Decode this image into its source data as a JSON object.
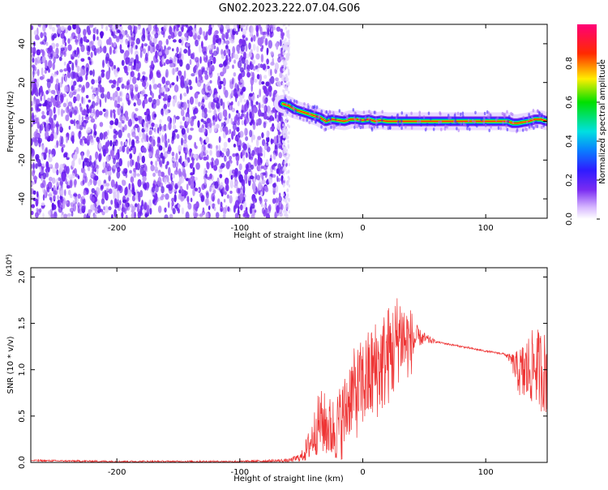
{
  "page": {
    "title": "GN02.2023.222.07.04.G06"
  },
  "colors": {
    "snr_line": "#ee3333",
    "spectrogram_noise": "#7a2cf2",
    "axis": "#000000"
  },
  "colorbar": {
    "label": "Normalized spectral amplitude",
    "ticks": [
      "0.0",
      "0.2",
      "0.4",
      "0.6",
      "0.8"
    ],
    "tick_values": [
      0.0,
      0.2,
      0.4,
      0.6,
      0.8
    ],
    "range": [
      0,
      1
    ],
    "colormap": "white-purple-blue-cyan-green-yellow-red-magenta"
  },
  "chart_data": [
    {
      "type": "heatmap",
      "title": "",
      "xlabel": "Height of straight line (km)",
      "ylabel": "Frequency (Hz)",
      "xlim": [
        -270,
        150
      ],
      "ylim": [
        -50,
        50
      ],
      "xticks": [
        "-200",
        "-100",
        "0",
        "100"
      ],
      "xtick_values": [
        -200,
        -100,
        0,
        100
      ],
      "yticks": [
        "-40",
        "-20",
        "0",
        "20",
        "40"
      ],
      "ytick_values": [
        -40,
        -20,
        0,
        20,
        40
      ],
      "noise_region_x": [
        -270,
        -65
      ],
      "signal_trace": {
        "x": [
          -65,
          -60,
          -55,
          -50,
          -45,
          -40,
          -35,
          -30,
          -25,
          -20,
          -15,
          -10,
          -5,
          0,
          5,
          10,
          15,
          20,
          25,
          30,
          35,
          40,
          50,
          60,
          70,
          80,
          90,
          100,
          110,
          118,
          122,
          126,
          130,
          135,
          140,
          145,
          150
        ],
        "y": [
          9,
          8,
          6,
          5,
          4,
          3,
          2,
          0,
          1,
          0.5,
          0,
          1,
          1,
          0.5,
          1,
          0,
          0.5,
          0,
          0,
          0,
          0,
          0,
          0,
          0,
          0,
          0,
          0,
          0,
          0,
          0,
          -1,
          -1,
          -0.5,
          0,
          1,
          1,
          0
        ]
      }
    },
    {
      "type": "line",
      "title": "",
      "xlabel": "Height of straight line (km)",
      "ylabel": "SNR (10 * v/v)",
      "y_multiplier": "(x10⁴)",
      "xlim": [
        -270,
        150
      ],
      "ylim": [
        0,
        2.1
      ],
      "xticks": [
        "-200",
        "-100",
        "0",
        "100"
      ],
      "xtick_values": [
        -200,
        -100,
        0,
        100
      ],
      "yticks": [
        "0.0",
        "0.5",
        "1.0",
        "1.5",
        "2.0"
      ],
      "ytick_values": [
        0,
        0.5,
        1.0,
        1.5,
        2.0
      ],
      "series": [
        {
          "x": [
            -270,
            -200,
            -100,
            -60,
            -50,
            -45,
            -40,
            -35,
            -30,
            -25,
            -20,
            -15,
            -10,
            -5,
            0,
            5,
            10,
            15,
            20,
            25,
            30,
            35,
            40,
            45,
            60,
            80,
            100,
            115,
            120,
            125,
            130,
            135,
            140,
            145,
            150
          ],
          "y": [
            0.02,
            0.01,
            0.01,
            0.02,
            0.06,
            0.15,
            0.3,
            0.45,
            0.4,
            0.35,
            0.4,
            0.5,
            0.75,
            0.75,
            0.85,
            0.9,
            1.0,
            1.05,
            1.15,
            1.2,
            1.4,
            1.3,
            1.3,
            1.35,
            1.3,
            1.25,
            1.2,
            1.17,
            1.12,
            1.0,
            0.95,
            1.0,
            1.05,
            1.0,
            0.95
          ],
          "noise_amplitude": [
            0.01,
            0.01,
            0.01,
            0.02,
            0.05,
            0.15,
            0.25,
            0.35,
            0.35,
            0.35,
            0.4,
            0.45,
            0.45,
            0.5,
            0.5,
            0.55,
            0.55,
            0.55,
            0.55,
            0.55,
            0.5,
            0.45,
            0.35,
            0.1,
            0.01,
            0.01,
            0.01,
            0.01,
            0.05,
            0.2,
            0.35,
            0.4,
            0.4,
            0.45,
            0.45
          ]
        }
      ]
    }
  ]
}
